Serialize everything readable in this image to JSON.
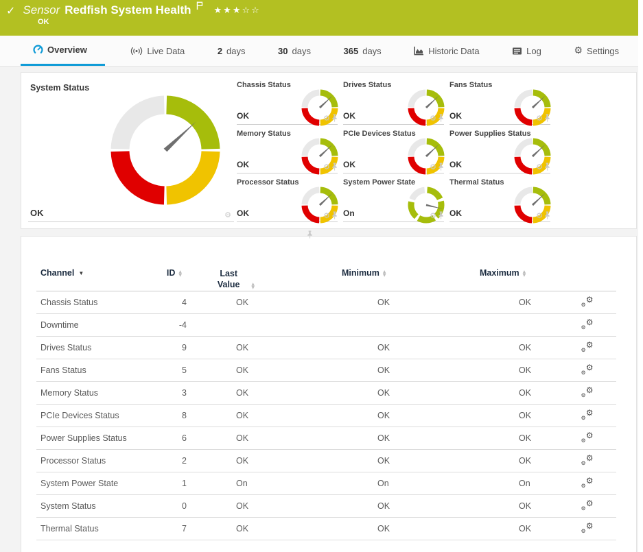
{
  "header": {
    "type_label": "Sensor",
    "title": "Redfish System Health",
    "status": "OK",
    "rating_filled": 3,
    "rating_total": 5
  },
  "tabs": [
    {
      "label": "Overview",
      "icon": "gauge-icon",
      "active": true
    },
    {
      "label": "Live Data",
      "icon": "live-data-icon",
      "active": false
    },
    {
      "num": "2",
      "label": "days",
      "active": false
    },
    {
      "num": "30",
      "label": "days",
      "active": false
    },
    {
      "num": "365",
      "label": "days",
      "active": false
    },
    {
      "label": "Historic Data",
      "icon": "area-chart-icon",
      "active": false
    },
    {
      "label": "Log",
      "icon": "log-icon",
      "active": false
    },
    {
      "label": "Settings",
      "icon": "gear-icon",
      "active": false
    }
  ],
  "system_status": {
    "title": "System Status",
    "value": "OK",
    "gauges": [
      {
        "title": "Chassis Status",
        "value": "OK",
        "style": "quad"
      },
      {
        "title": "Drives Status",
        "value": "OK",
        "style": "quad"
      },
      {
        "title": "Fans Status",
        "value": "OK",
        "style": "quad"
      },
      {
        "title": "Memory Status",
        "value": "OK",
        "style": "quad"
      },
      {
        "title": "PCIe Devices Status",
        "value": "OK",
        "style": "quad"
      },
      {
        "title": "Power Supplies Status",
        "value": "OK",
        "style": "quad"
      },
      {
        "title": "Processor Status",
        "value": "OK",
        "style": "quad"
      },
      {
        "title": "System Power State",
        "value": "On",
        "style": "segmented"
      },
      {
        "title": "Thermal Status",
        "value": "OK",
        "style": "quad"
      }
    ]
  },
  "table": {
    "columns": [
      "Channel",
      "ID",
      "Last Value",
      "Minimum",
      "Maximum"
    ],
    "rows": [
      {
        "channel": "Chassis Status",
        "id": "4",
        "last": "OK",
        "min": "OK",
        "max": "OK"
      },
      {
        "channel": "Downtime",
        "id": "-4",
        "last": "",
        "min": "",
        "max": ""
      },
      {
        "channel": "Drives Status",
        "id": "9",
        "last": "OK",
        "min": "OK",
        "max": "OK"
      },
      {
        "channel": "Fans Status",
        "id": "5",
        "last": "OK",
        "min": "OK",
        "max": "OK"
      },
      {
        "channel": "Memory Status",
        "id": "3",
        "last": "OK",
        "min": "OK",
        "max": "OK"
      },
      {
        "channel": "PCIe Devices Status",
        "id": "8",
        "last": "OK",
        "min": "OK",
        "max": "OK"
      },
      {
        "channel": "Power Supplies Status",
        "id": "6",
        "last": "OK",
        "min": "OK",
        "max": "OK"
      },
      {
        "channel": "Processor Status",
        "id": "2",
        "last": "OK",
        "min": "OK",
        "max": "OK"
      },
      {
        "channel": "System Power State",
        "id": "1",
        "last": "On",
        "min": "On",
        "max": "On"
      },
      {
        "channel": "System Status",
        "id": "0",
        "last": "OK",
        "min": "OK",
        "max": "OK"
      },
      {
        "channel": "Thermal Status",
        "id": "7",
        "last": "OK",
        "min": "OK",
        "max": "OK"
      }
    ]
  },
  "colors": {
    "header_bg": "#b3c022",
    "accent_blue": "#0f9bd7",
    "gauge_green": "#a6bd0b",
    "gauge_yellow": "#f0c300",
    "gauge_red": "#e00000",
    "gauge_gray": "#e8e8e8",
    "needle_gray": "#6f6f6f"
  }
}
